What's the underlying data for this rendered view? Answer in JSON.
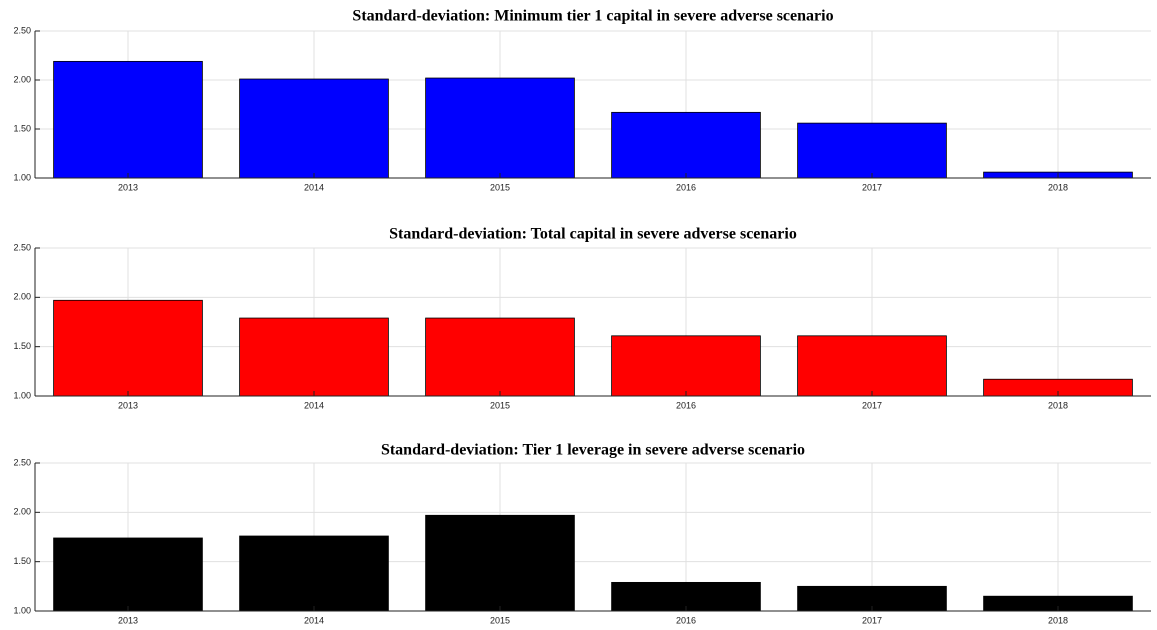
{
  "chart_data": [
    {
      "type": "bar",
      "title": "Standard-deviation: Minimum tier 1 capital in severe adverse scenario",
      "categories": [
        "2013",
        "2014",
        "2015",
        "2016",
        "2017",
        "2018"
      ],
      "values": [
        2.19,
        2.01,
        2.02,
        1.67,
        1.56,
        1.06
      ],
      "color": "#0000ff",
      "ylim": [
        1,
        2.5
      ],
      "yticks": [
        {
          "value": 1,
          "label": "1.00"
        },
        {
          "value": 1.5,
          "label": "1.50"
        },
        {
          "value": 2,
          "label": "2.00"
        },
        {
          "value": 2.5,
          "label": "2.50"
        }
      ],
      "grid": true
    },
    {
      "type": "bar",
      "title": "Standard-deviation: Total capital in severe adverse scenario",
      "categories": [
        "2013",
        "2014",
        "2015",
        "2016",
        "2017",
        "2018"
      ],
      "values": [
        1.97,
        1.79,
        1.79,
        1.61,
        1.61,
        1.17
      ],
      "color": "#ff0000",
      "ylim": [
        1,
        2.5
      ],
      "yticks": [
        {
          "value": 1,
          "label": "1.00"
        },
        {
          "value": 1.5,
          "label": "1.50"
        },
        {
          "value": 2,
          "label": "2.00"
        },
        {
          "value": 2.5,
          "label": "2.50"
        }
      ],
      "grid": true
    },
    {
      "type": "bar",
      "title": "Standard-deviation: Tier 1 leverage in severe adverse scenario",
      "categories": [
        "2013",
        "2014",
        "2015",
        "2016",
        "2017",
        "2018"
      ],
      "values": [
        1.74,
        1.76,
        1.97,
        1.29,
        1.25,
        1.15
      ],
      "color": "#000000",
      "ylim": [
        1,
        2.5
      ],
      "yticks": [
        {
          "value": 1,
          "label": "1.00"
        },
        {
          "value": 1.5,
          "label": "1.50"
        },
        {
          "value": 2,
          "label": "2.00"
        },
        {
          "value": 2.5,
          "label": "2.50"
        }
      ],
      "grid": true
    }
  ]
}
